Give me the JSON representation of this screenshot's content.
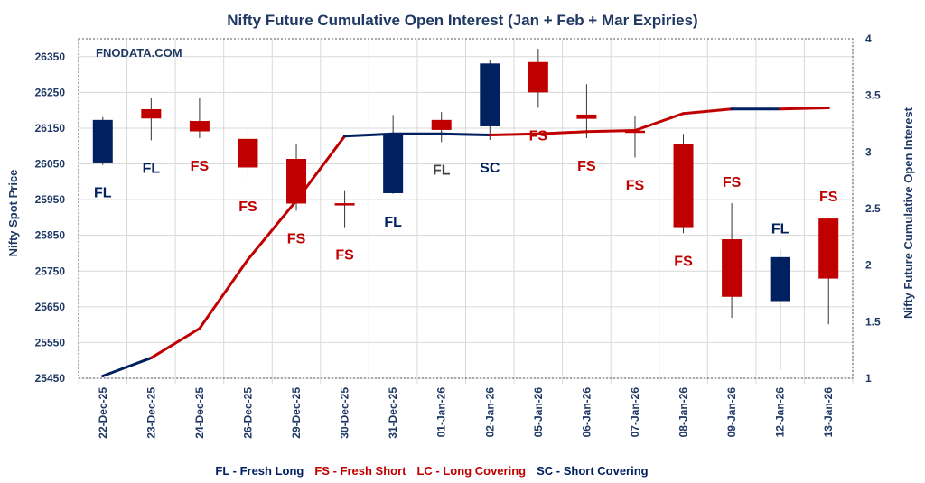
{
  "chart_data": {
    "type": "candlestick+line",
    "title": "Nifty Future Cumulative Open Interest (Jan  + Feb + Mar Expiries)",
    "watermark": "FNODATA.COM",
    "ylabel": "Nifty Spot Price",
    "y2label": "Nifty Future Cumulative Open Interest",
    "ylim": [
      25450,
      26400
    ],
    "yticks": [
      25450,
      25550,
      25650,
      25750,
      25850,
      25950,
      26050,
      26150,
      26250,
      26350
    ],
    "y2lim": [
      1,
      4
    ],
    "y2ticks": [
      1,
      1.5,
      2,
      2.5,
      3,
      3.5,
      4
    ],
    "grid": true,
    "categories": [
      "22-Dec-25",
      "23-Dec-25",
      "24-Dec-25",
      "26-Dec-25",
      "29-Dec-25",
      "30-Dec-25",
      "31-Dec-25",
      "01-Jan-26",
      "02-Jan-26",
      "05-Jan-26",
      "06-Jan-26",
      "07-Jan-26",
      "08-Jan-26",
      "09-Jan-26",
      "12-Jan-26",
      "13-Jan-26"
    ],
    "candles": [
      {
        "open": 26054,
        "high": 26181,
        "low": 26047,
        "close": 26173
      },
      {
        "open": 26203,
        "high": 26234,
        "low": 26116,
        "close": 26177
      },
      {
        "open": 26170,
        "high": 26235,
        "low": 26122,
        "close": 26141
      },
      {
        "open": 26120,
        "high": 26144,
        "low": 26008,
        "close": 26040
      },
      {
        "open": 26064,
        "high": 26107,
        "low": 25919,
        "close": 25939
      },
      {
        "open": 25940,
        "high": 25974,
        "low": 25873,
        "close": 25938
      },
      {
        "open": 25968,
        "high": 26187,
        "low": 25966,
        "close": 26134
      },
      {
        "open": 26173,
        "high": 26195,
        "low": 26111,
        "close": 26145
      },
      {
        "open": 26155,
        "high": 26340,
        "low": 26117,
        "close": 26331
      },
      {
        "open": 26335,
        "high": 26372,
        "low": 26207,
        "close": 26250
      },
      {
        "open": 26188,
        "high": 26273,
        "low": 26122,
        "close": 26176
      },
      {
        "open": 26143,
        "high": 26185,
        "low": 26068,
        "close": 26142
      },
      {
        "open": 26105,
        "high": 26134,
        "low": 25856,
        "close": 25873
      },
      {
        "open": 25839,
        "high": 25940,
        "low": 25619,
        "close": 25678
      },
      {
        "open": 25666,
        "high": 25810,
        "low": 25473,
        "close": 25789
      },
      {
        "open": 25897,
        "high": 25900,
        "low": 25601,
        "close": 25729
      }
    ],
    "open_interest": [
      1.02,
      1.18,
      1.44,
      2.05,
      2.57,
      3.14,
      3.16,
      3.16,
      3.15,
      3.16,
      3.18,
      3.19,
      3.34,
      3.38,
      3.38,
      3.39
    ],
    "oi_segment_colors": [
      "#002060",
      "#C00000",
      "#C00000",
      "#C00000",
      "#C00000",
      "#002060",
      "#002060",
      "#002060",
      "#C00000",
      "#C00000",
      "#C00000",
      "#C00000",
      "#C00000",
      "#002060",
      "#C00000"
    ],
    "labels": [
      {
        "text": "FL",
        "pos": "below",
        "color": "#002060"
      },
      {
        "text": "FL",
        "pos": "below",
        "color": "#002060"
      },
      {
        "text": "FS",
        "pos": "below",
        "color": "#C00000"
      },
      {
        "text": "FS",
        "pos": "below",
        "color": "#C00000"
      },
      {
        "text": "FS",
        "pos": "below",
        "color": "#C00000"
      },
      {
        "text": "FS",
        "pos": "below",
        "color": "#C00000"
      },
      {
        "text": "FL",
        "pos": "below",
        "color": "#002060"
      },
      {
        "text": "FL",
        "pos": "below",
        "color": "#404040"
      },
      {
        "text": "SC",
        "pos": "below",
        "color": "#002060"
      },
      {
        "text": "FS",
        "pos": "below",
        "color": "#C00000"
      },
      {
        "text": "FS",
        "pos": "below",
        "color": "#C00000"
      },
      {
        "text": "FS",
        "pos": "below",
        "color": "#C00000"
      },
      {
        "text": "FS",
        "pos": "below",
        "color": "#C00000"
      },
      {
        "text": "FS",
        "pos": "above",
        "color": "#C00000"
      },
      {
        "text": "FL",
        "pos": "above",
        "color": "#002060"
      },
      {
        "text": "FS",
        "pos": "above",
        "color": "#C00000"
      }
    ],
    "colors": {
      "up": "#002060",
      "down": "#C00000",
      "grid": "#D9D9D9",
      "text": "#1F3864"
    },
    "legend": [
      {
        "text": "FL - Fresh Long",
        "color": "#002060"
      },
      {
        "text": "FS - Fresh Short",
        "color": "#C00000"
      },
      {
        "text": "LC - Long Covering",
        "color": "#C00000"
      },
      {
        "text": "SC - Short Covering",
        "color": "#002060"
      }
    ],
    "legend_placement": "bottom"
  }
}
